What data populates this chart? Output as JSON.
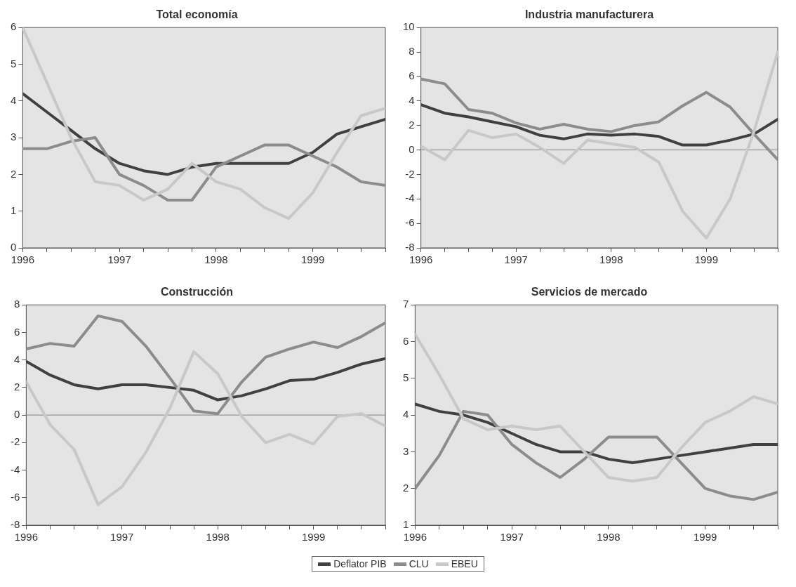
{
  "chart_data": [
    {
      "type": "line",
      "title": "Total economía",
      "x": [
        1996,
        1996.25,
        1996.5,
        1996.75,
        1997,
        1997.25,
        1997.5,
        1997.75,
        1998,
        1998.25,
        1998.5,
        1998.75,
        1999,
        1999.25,
        1999.5,
        1999.75
      ],
      "xlim": [
        1996,
        1999.75
      ],
      "xticks": [
        1996,
        {
          "value": 1996.25,
          "label": null
        },
        {
          "value": 1996.5,
          "label": null
        },
        {
          "value": 1996.75,
          "label": null
        },
        1997,
        {
          "value": 1997.25,
          "label": null
        },
        {
          "value": 1997.5,
          "label": null
        },
        {
          "value": 1997.75,
          "label": null
        },
        1998,
        {
          "value": 1998.25,
          "label": null
        },
        {
          "value": 1998.5,
          "label": null
        },
        {
          "value": 1998.75,
          "label": null
        },
        1999,
        {
          "value": 1999.25,
          "label": null
        },
        {
          "value": 1999.5,
          "label": null
        },
        {
          "value": 1999.75,
          "label": null
        }
      ],
      "ylim": [
        0,
        6
      ],
      "yticks": [
        0,
        1,
        2,
        3,
        4,
        5,
        6
      ],
      "grid": false,
      "marker": "none",
      "line_style": "solid",
      "series": [
        {
          "color": "#404040",
          "values": [
            4.2,
            3.7,
            3.2,
            2.7,
            2.3,
            2.1,
            2.0,
            2.2,
            2.3,
            2.3,
            2.3,
            2.3,
            2.6,
            3.1,
            3.3,
            3.5
          ]
        },
        {
          "color": "#8c8c8c",
          "values": [
            2.7,
            2.7,
            2.9,
            3.0,
            2.0,
            1.7,
            1.3,
            1.3,
            2.2,
            2.5,
            2.8,
            2.8,
            2.5,
            2.2,
            1.8,
            1.7
          ]
        },
        {
          "color": "#c8c8c8",
          "values": [
            6.0,
            4.5,
            3.0,
            1.8,
            1.7,
            1.3,
            1.6,
            2.3,
            1.8,
            1.6,
            1.1,
            0.8,
            1.5,
            2.6,
            3.6,
            3.8
          ]
        }
      ]
    },
    {
      "type": "line",
      "title": "Industria manufacturera",
      "x": [
        1996,
        1996.25,
        1996.5,
        1996.75,
        1997,
        1997.25,
        1997.5,
        1997.75,
        1998,
        1998.25,
        1998.5,
        1998.75,
        1999,
        1999.25,
        1999.5,
        1999.75
      ],
      "xlim": [
        1996,
        1999.75
      ],
      "xticks": [
        1996,
        {
          "value": 1996.25,
          "label": null
        },
        {
          "value": 1996.5,
          "label": null
        },
        {
          "value": 1996.75,
          "label": null
        },
        1997,
        {
          "value": 1997.25,
          "label": null
        },
        {
          "value": 1997.5,
          "label": null
        },
        {
          "value": 1997.75,
          "label": null
        },
        1998,
        {
          "value": 1998.25,
          "label": null
        },
        {
          "value": 1998.5,
          "label": null
        },
        {
          "value": 1998.75,
          "label": null
        },
        1999,
        {
          "value": 1999.25,
          "label": null
        },
        {
          "value": 1999.5,
          "label": null
        },
        {
          "value": 1999.75,
          "label": null
        }
      ],
      "ylim": [
        -8,
        10
      ],
      "yticks": [
        -8,
        -6,
        -4,
        -2,
        0,
        2,
        4,
        6,
        8,
        10
      ],
      "grid": false,
      "marker": "none",
      "line_style": "solid",
      "ref_lines": [
        {
          "axis": "y",
          "value": 0,
          "color": "#808080"
        }
      ],
      "series": [
        {
          "color": "#404040",
          "values": [
            3.7,
            3.0,
            2.7,
            2.3,
            1.9,
            1.2,
            0.9,
            1.3,
            1.2,
            1.3,
            1.1,
            0.4,
            0.4,
            0.8,
            1.3,
            2.5
          ]
        },
        {
          "color": "#8c8c8c",
          "values": [
            5.8,
            5.4,
            3.3,
            3.0,
            2.2,
            1.7,
            2.1,
            1.7,
            1.5,
            2.0,
            2.3,
            3.6,
            4.7,
            3.5,
            1.3,
            -0.8
          ]
        },
        {
          "color": "#c8c8c8",
          "values": [
            0.3,
            -0.8,
            1.6,
            1.0,
            1.3,
            0.2,
            -1.1,
            0.8,
            0.5,
            0.2,
            -1.0,
            -5.0,
            -7.2,
            -4.0,
            1.5,
            8.0
          ]
        }
      ]
    },
    {
      "type": "line",
      "title": "Construcción",
      "x": [
        1996,
        1996.25,
        1996.5,
        1996.75,
        1997,
        1997.25,
        1997.5,
        1997.75,
        1998,
        1998.25,
        1998.5,
        1998.75,
        1999,
        1999.25,
        1999.5,
        1999.75
      ],
      "xlim": [
        1996,
        1999.75
      ],
      "xticks": [
        1996,
        {
          "value": 1996.25,
          "label": null
        },
        {
          "value": 1996.5,
          "label": null
        },
        {
          "value": 1996.75,
          "label": null
        },
        1997,
        {
          "value": 1997.25,
          "label": null
        },
        {
          "value": 1997.5,
          "label": null
        },
        {
          "value": 1997.75,
          "label": null
        },
        1998,
        {
          "value": 1998.25,
          "label": null
        },
        {
          "value": 1998.5,
          "label": null
        },
        {
          "value": 1998.75,
          "label": null
        },
        1999,
        {
          "value": 1999.25,
          "label": null
        },
        {
          "value": 1999.5,
          "label": null
        },
        {
          "value": 1999.75,
          "label": null
        }
      ],
      "ylim": [
        -8,
        8
      ],
      "yticks": [
        -8,
        -6,
        -4,
        -2,
        0,
        2,
        4,
        6,
        8
      ],
      "grid": false,
      "marker": "none",
      "line_style": "solid",
      "ref_lines": [
        {
          "axis": "y",
          "value": 0,
          "color": "#808080"
        }
      ],
      "series": [
        {
          "color": "#404040",
          "values": [
            3.9,
            2.9,
            2.2,
            1.9,
            2.2,
            2.2,
            2.0,
            1.8,
            1.1,
            1.4,
            1.9,
            2.5,
            2.6,
            3.1,
            3.7,
            4.1
          ]
        },
        {
          "color": "#8c8c8c",
          "values": [
            4.8,
            5.2,
            5.0,
            7.2,
            6.8,
            5.0,
            2.7,
            0.3,
            0.1,
            2.4,
            4.2,
            4.8,
            5.3,
            4.9,
            5.7,
            6.7
          ]
        },
        {
          "color": "#c8c8c8",
          "values": [
            2.4,
            -0.7,
            -2.5,
            -6.5,
            -5.2,
            -2.7,
            0.5,
            4.6,
            3.0,
            -0.1,
            -2.0,
            -1.4,
            -2.1,
            -0.1,
            0.1,
            -0.8
          ]
        }
      ]
    },
    {
      "type": "line",
      "title": "Servicios de mercado",
      "x": [
        1996,
        1996.25,
        1996.5,
        1996.75,
        1997,
        1997.25,
        1997.5,
        1997.75,
        1998,
        1998.25,
        1998.5,
        1998.75,
        1999,
        1999.25,
        1999.5,
        1999.75
      ],
      "xlim": [
        1996,
        1999.75
      ],
      "xticks": [
        1996,
        {
          "value": 1996.25,
          "label": null
        },
        {
          "value": 1996.5,
          "label": null
        },
        {
          "value": 1996.75,
          "label": null
        },
        1997,
        {
          "value": 1997.25,
          "label": null
        },
        {
          "value": 1997.5,
          "label": null
        },
        {
          "value": 1997.75,
          "label": null
        },
        1998,
        {
          "value": 1998.25,
          "label": null
        },
        {
          "value": 1998.5,
          "label": null
        },
        {
          "value": 1998.75,
          "label": null
        },
        1999,
        {
          "value": 1999.25,
          "label": null
        },
        {
          "value": 1999.5,
          "label": null
        },
        {
          "value": 1999.75,
          "label": null
        }
      ],
      "ylim": [
        1,
        7
      ],
      "yticks": [
        1,
        2,
        3,
        4,
        5,
        6,
        7
      ],
      "grid": false,
      "legend": "bottom",
      "marker": "none",
      "line_style": "solid",
      "series": [
        {
          "name": "Deflator PIB",
          "color": "#404040",
          "values": [
            4.3,
            4.1,
            4.0,
            3.8,
            3.5,
            3.2,
            3.0,
            3.0,
            2.8,
            2.7,
            2.8,
            2.9,
            3.0,
            3.1,
            3.2,
            3.2
          ]
        },
        {
          "name": "CLU",
          "color": "#8c8c8c",
          "values": [
            2.0,
            2.9,
            4.1,
            4.0,
            3.2,
            2.7,
            2.3,
            2.8,
            3.4,
            3.4,
            3.4,
            2.7,
            2.0,
            1.8,
            1.7,
            1.9
          ]
        },
        {
          "name": "EBEU",
          "color": "#c8c8c8",
          "values": [
            6.2,
            5.1,
            3.9,
            3.6,
            3.7,
            3.6,
            3.7,
            3.0,
            2.3,
            2.2,
            2.3,
            3.1,
            3.8,
            4.1,
            4.5,
            4.3
          ]
        }
      ]
    }
  ]
}
